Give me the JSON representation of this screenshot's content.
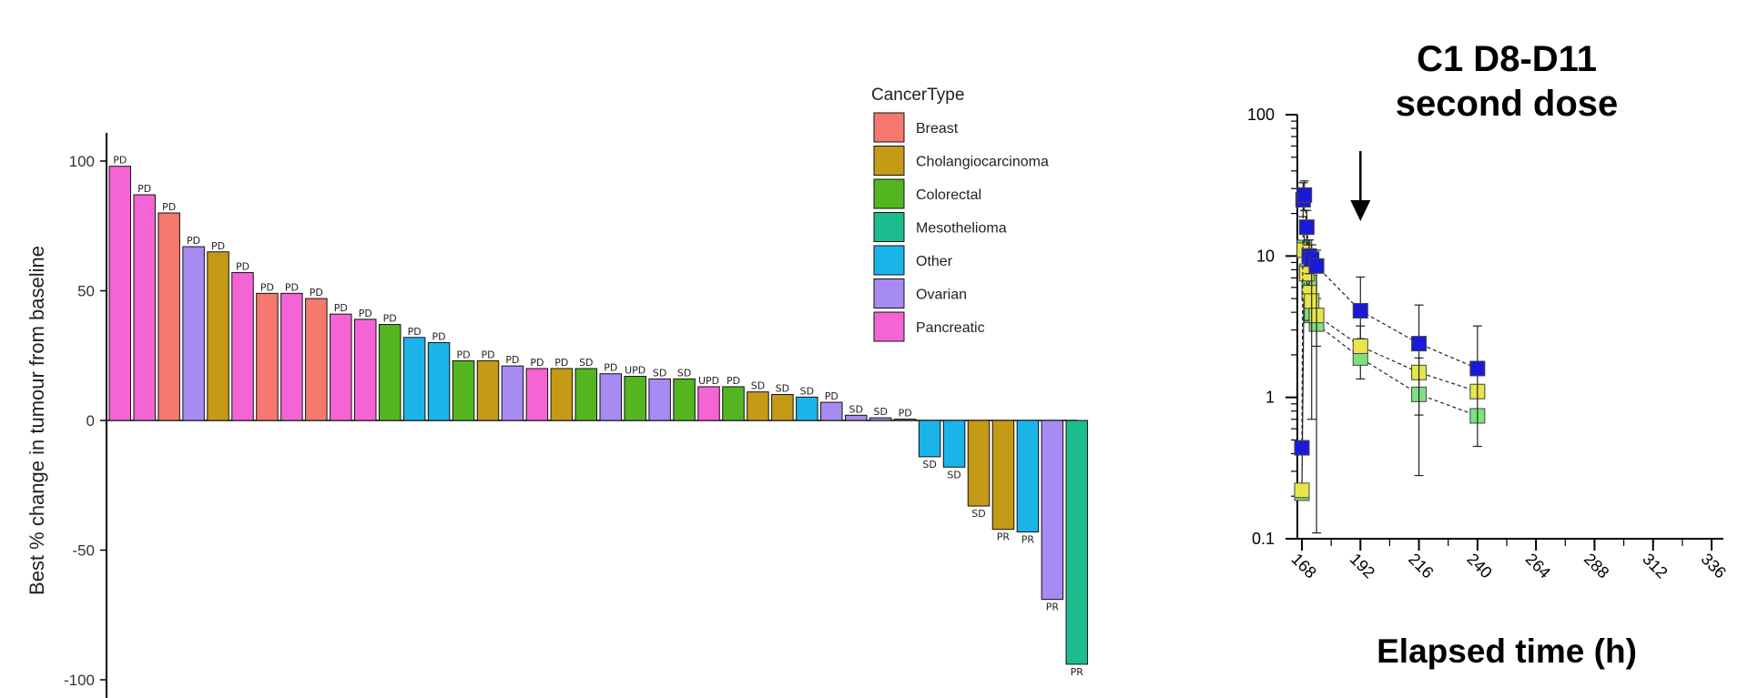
{
  "chart_data": [
    {
      "type": "bar",
      "ylabel": "Best % change in tumour from baseline",
      "ylim": [
        -100,
        110
      ],
      "yticks": [
        100,
        50,
        0,
        -50,
        -100
      ],
      "legend": {
        "title": "CancerType",
        "position": "top-right",
        "entries": [
          {
            "name": "Breast",
            "color": "#f4786e"
          },
          {
            "name": "Cholangiocarcinoma",
            "color": "#c49a16"
          },
          {
            "name": "Colorectal",
            "color": "#55b521"
          },
          {
            "name": "Mesothelioma",
            "color": "#1dbc8e"
          },
          {
            "name": "Other",
            "color": "#1bb4e8"
          },
          {
            "name": "Ovarian",
            "color": "#a78bf2"
          },
          {
            "name": "Pancreatic",
            "color": "#f464d4"
          }
        ]
      },
      "bars": [
        {
          "type": "Pancreatic",
          "value": 98,
          "label": "PD"
        },
        {
          "type": "Pancreatic",
          "value": 87,
          "label": "PD"
        },
        {
          "type": "Breast",
          "value": 80,
          "label": "PD"
        },
        {
          "type": "Ovarian",
          "value": 67,
          "label": "PD"
        },
        {
          "type": "Cholangiocarcinoma",
          "value": 65,
          "label": "PD"
        },
        {
          "type": "Pancreatic",
          "value": 57,
          "label": "PD"
        },
        {
          "type": "Breast",
          "value": 49,
          "label": "PD"
        },
        {
          "type": "Pancreatic",
          "value": 49,
          "label": "PD"
        },
        {
          "type": "Breast",
          "value": 47,
          "label": "PD"
        },
        {
          "type": "Pancreatic",
          "value": 41,
          "label": "PD"
        },
        {
          "type": "Pancreatic",
          "value": 39,
          "label": "PD"
        },
        {
          "type": "Colorectal",
          "value": 37,
          "label": "PD"
        },
        {
          "type": "Other",
          "value": 32,
          "label": "PD"
        },
        {
          "type": "Other",
          "value": 30,
          "label": "PD"
        },
        {
          "type": "Colorectal",
          "value": 23,
          "label": "PD"
        },
        {
          "type": "Cholangiocarcinoma",
          "value": 23,
          "label": "PD"
        },
        {
          "type": "Ovarian",
          "value": 21,
          "label": "PD"
        },
        {
          "type": "Pancreatic",
          "value": 20,
          "label": "PD"
        },
        {
          "type": "Cholangiocarcinoma",
          "value": 20,
          "label": "PD"
        },
        {
          "type": "Colorectal",
          "value": 20,
          "label": "SD"
        },
        {
          "type": "Ovarian",
          "value": 18,
          "label": "PD"
        },
        {
          "type": "Colorectal",
          "value": 17,
          "label": "UPD"
        },
        {
          "type": "Ovarian",
          "value": 16,
          "label": "SD"
        },
        {
          "type": "Colorectal",
          "value": 16,
          "label": "SD"
        },
        {
          "type": "Pancreatic",
          "value": 13,
          "label": "UPD"
        },
        {
          "type": "Colorectal",
          "value": 13,
          "label": "PD"
        },
        {
          "type": "Cholangiocarcinoma",
          "value": 11,
          "label": "SD"
        },
        {
          "type": "Cholangiocarcinoma",
          "value": 10,
          "label": "SD"
        },
        {
          "type": "Other",
          "value": 9,
          "label": "SD"
        },
        {
          "type": "Ovarian",
          "value": 7,
          "label": "PD"
        },
        {
          "type": "Ovarian",
          "value": 2,
          "label": "SD"
        },
        {
          "type": "Ovarian",
          "value": 1,
          "label": "SD"
        },
        {
          "type": "Ovarian",
          "value": 0.5,
          "label": "PD"
        },
        {
          "type": "Other",
          "value": -14,
          "label": "SD"
        },
        {
          "type": "Other",
          "value": -18,
          "label": "SD"
        },
        {
          "type": "Cholangiocarcinoma",
          "value": -33,
          "label": "SD"
        },
        {
          "type": "Cholangiocarcinoma",
          "value": -42,
          "label": "PR"
        },
        {
          "type": "Other",
          "value": -43,
          "label": "PR"
        },
        {
          "type": "Ovarian",
          "value": -69,
          "label": "PR"
        },
        {
          "type": "Mesothelioma",
          "value": -94,
          "label": "PR"
        }
      ]
    },
    {
      "type": "line",
      "title_lines": [
        "C1 D8-D11",
        "second dose"
      ],
      "xlabel": "Elapsed time (h)",
      "yscale": "log",
      "ylim": [
        0.1,
        100
      ],
      "xlim": [
        168,
        336
      ],
      "xticks": [
        168,
        192,
        216,
        240,
        264,
        288,
        312,
        336
      ],
      "yticks": [
        {
          "value": 100,
          "label": "100"
        },
        {
          "value": 10,
          "label": "10"
        },
        {
          "value": 1,
          "label": "1"
        },
        {
          "value": 0.1,
          "label": "0.1"
        }
      ],
      "annotation": {
        "type": "arrow-down",
        "x": 192
      },
      "series": [
        {
          "color": "#1a1ad6",
          "dash": true,
          "points": [
            {
              "x": 168,
              "y": 0.44
            },
            {
              "x": 168.5,
              "y": 25,
              "err": [
                19,
                33
              ]
            },
            {
              "x": 169,
              "y": 27,
              "err": [
                21,
                34
              ]
            },
            {
              "x": 170,
              "y": 16,
              "err": [
                12,
                21
              ]
            },
            {
              "x": 171,
              "y": 10,
              "err": [
                7.5,
                13
              ]
            },
            {
              "x": 172,
              "y": 9.5,
              "err": [
                0.7,
                12
              ]
            },
            {
              "x": 174,
              "y": 8.5,
              "err": [
                0.11,
                11
              ]
            },
            {
              "x": 192,
              "y": 4.1,
              "err": [
                2.6,
                7.1
              ]
            },
            {
              "x": 216,
              "y": 2.4,
              "err": [
                0.28,
                4.5
              ]
            },
            {
              "x": 240,
              "y": 1.6,
              "err": [
                0.45,
                3.2
              ]
            }
          ]
        },
        {
          "color": "#e6e64a",
          "dash": true,
          "points": [
            {
              "x": 168,
              "y": 0.22
            },
            {
              "x": 169,
              "y": 11,
              "err": [
                7,
                15
              ]
            },
            {
              "x": 170,
              "y": 7.5,
              "err": [
                5,
                10
              ]
            },
            {
              "x": 171,
              "y": 5.5,
              "err": [
                3.5,
                8
              ]
            },
            {
              "x": 172,
              "y": 4.8
            },
            {
              "x": 174,
              "y": 3.8
            },
            {
              "x": 192,
              "y": 2.3
            },
            {
              "x": 216,
              "y": 1.5
            },
            {
              "x": 240,
              "y": 1.1
            }
          ]
        },
        {
          "color": "#7ee07e",
          "dash": true,
          "points": [
            {
              "x": 168,
              "y": 0.21
            },
            {
              "x": 169,
              "y": 11.5
            },
            {
              "x": 170,
              "y": 7.8
            },
            {
              "x": 171,
              "y": 6.5
            },
            {
              "x": 172,
              "y": 3.8
            },
            {
              "x": 174,
              "y": 3.3,
              "err": [
                2.3,
                5
              ]
            },
            {
              "x": 192,
              "y": 1.9,
              "err": [
                1.35,
                3.2
              ]
            },
            {
              "x": 216,
              "y": 1.05,
              "err": [
                0.75,
                1.9
              ]
            },
            {
              "x": 240,
              "y": 0.74
            }
          ]
        }
      ]
    }
  ]
}
